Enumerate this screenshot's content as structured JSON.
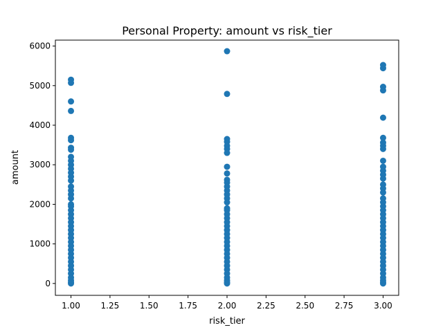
{
  "chart_data": {
    "type": "scatter",
    "title": "Personal Property: amount vs risk_tier",
    "xlabel": "risk_tier",
    "ylabel": "amount",
    "xlim": [
      0.9,
      3.1
    ],
    "ylim": [
      -300,
      6150
    ],
    "xticks": [
      1.0,
      1.25,
      1.5,
      1.75,
      2.0,
      2.25,
      2.5,
      2.75,
      3.0
    ],
    "xtick_labels": [
      "1.00",
      "1.25",
      "1.50",
      "1.75",
      "2.00",
      "2.25",
      "2.50",
      "2.75",
      "3.00"
    ],
    "yticks": [
      0,
      1000,
      2000,
      3000,
      4000,
      5000,
      6000
    ],
    "ytick_labels": [
      "0",
      "1000",
      "2000",
      "3000",
      "4000",
      "5000",
      "6000"
    ],
    "grid": false,
    "color": "#1f77b4",
    "series": [
      {
        "points": [
          [
            1.0,
            5150
          ],
          [
            1.0,
            5070
          ],
          [
            1.0,
            4600
          ],
          [
            1.0,
            4360
          ],
          [
            1.0,
            3680
          ],
          [
            1.0,
            3620
          ],
          [
            1.0,
            3430
          ],
          [
            1.0,
            3380
          ],
          [
            1.0,
            3200
          ],
          [
            1.0,
            3100
          ],
          [
            1.0,
            3000
          ],
          [
            1.0,
            2900
          ],
          [
            1.0,
            2800
          ],
          [
            1.0,
            2700
          ],
          [
            1.0,
            2600
          ],
          [
            1.0,
            2450
          ],
          [
            1.0,
            2350
          ],
          [
            1.0,
            2250
          ],
          [
            1.0,
            2150
          ],
          [
            1.0,
            2000
          ],
          [
            1.0,
            1950
          ],
          [
            1.0,
            1850
          ],
          [
            1.0,
            1750
          ],
          [
            1.0,
            1650
          ],
          [
            1.0,
            1550
          ],
          [
            1.0,
            1450
          ],
          [
            1.0,
            1350
          ],
          [
            1.0,
            1250
          ],
          [
            1.0,
            1150
          ],
          [
            1.0,
            1050
          ],
          [
            1.0,
            950
          ],
          [
            1.0,
            850
          ],
          [
            1.0,
            750
          ],
          [
            1.0,
            650
          ],
          [
            1.0,
            550
          ],
          [
            1.0,
            450
          ],
          [
            1.0,
            350
          ],
          [
            1.0,
            250
          ],
          [
            1.0,
            150
          ],
          [
            1.0,
            80
          ],
          [
            1.0,
            30
          ],
          [
            1.0,
            0
          ],
          [
            2.0,
            5870
          ],
          [
            2.0,
            4790
          ],
          [
            2.0,
            3650
          ],
          [
            2.0,
            3580
          ],
          [
            2.0,
            3480
          ],
          [
            2.0,
            3400
          ],
          [
            2.0,
            3300
          ],
          [
            2.0,
            2950
          ],
          [
            2.0,
            2780
          ],
          [
            2.0,
            2620
          ],
          [
            2.0,
            2550
          ],
          [
            2.0,
            2450
          ],
          [
            2.0,
            2350
          ],
          [
            2.0,
            2250
          ],
          [
            2.0,
            2150
          ],
          [
            2.0,
            2050
          ],
          [
            2.0,
            1900
          ],
          [
            2.0,
            1850
          ],
          [
            2.0,
            1750
          ],
          [
            2.0,
            1650
          ],
          [
            2.0,
            1550
          ],
          [
            2.0,
            1450
          ],
          [
            2.0,
            1350
          ],
          [
            2.0,
            1250
          ],
          [
            2.0,
            1150
          ],
          [
            2.0,
            1050
          ],
          [
            2.0,
            950
          ],
          [
            2.0,
            850
          ],
          [
            2.0,
            750
          ],
          [
            2.0,
            650
          ],
          [
            2.0,
            550
          ],
          [
            2.0,
            450
          ],
          [
            2.0,
            350
          ],
          [
            2.0,
            250
          ],
          [
            2.0,
            150
          ],
          [
            2.0,
            80
          ],
          [
            2.0,
            30
          ],
          [
            2.0,
            0
          ],
          [
            3.0,
            5520
          ],
          [
            3.0,
            5440
          ],
          [
            3.0,
            4970
          ],
          [
            3.0,
            4880
          ],
          [
            3.0,
            4190
          ],
          [
            3.0,
            3680
          ],
          [
            3.0,
            3560
          ],
          [
            3.0,
            3480
          ],
          [
            3.0,
            3400
          ],
          [
            3.0,
            3100
          ],
          [
            3.0,
            2950
          ],
          [
            3.0,
            2850
          ],
          [
            3.0,
            2750
          ],
          [
            3.0,
            2650
          ],
          [
            3.0,
            2500
          ],
          [
            3.0,
            2400
          ],
          [
            3.0,
            2300
          ],
          [
            3.0,
            2150
          ],
          [
            3.0,
            2050
          ],
          [
            3.0,
            1950
          ],
          [
            3.0,
            1850
          ],
          [
            3.0,
            1750
          ],
          [
            3.0,
            1650
          ],
          [
            3.0,
            1550
          ],
          [
            3.0,
            1450
          ],
          [
            3.0,
            1350
          ],
          [
            3.0,
            1250
          ],
          [
            3.0,
            1150
          ],
          [
            3.0,
            1050
          ],
          [
            3.0,
            950
          ],
          [
            3.0,
            850
          ],
          [
            3.0,
            750
          ],
          [
            3.0,
            650
          ],
          [
            3.0,
            550
          ],
          [
            3.0,
            450
          ],
          [
            3.0,
            350
          ],
          [
            3.0,
            250
          ],
          [
            3.0,
            150
          ],
          [
            3.0,
            80
          ],
          [
            3.0,
            30
          ],
          [
            3.0,
            0
          ]
        ]
      }
    ]
  }
}
